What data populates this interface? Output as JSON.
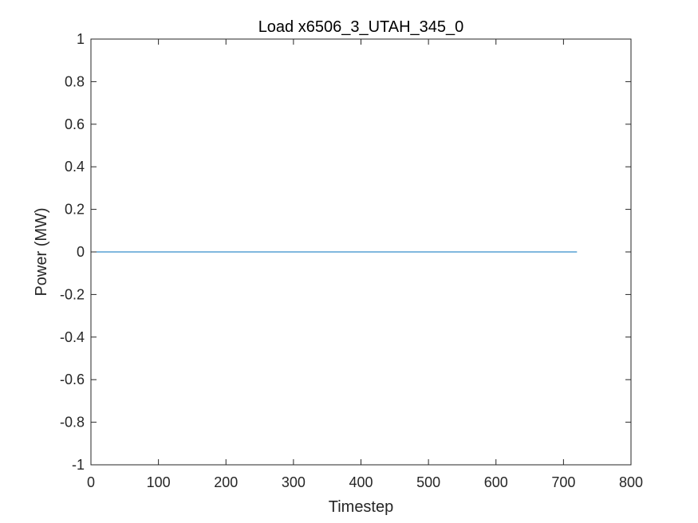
{
  "chart_data": {
    "type": "line",
    "title": "Load x6506_3_UTAH_345_0",
    "xlabel": "Timestep",
    "ylabel": "Power (MW)",
    "xlim": [
      0,
      800
    ],
    "ylim": [
      -1,
      1
    ],
    "xticks": [
      0,
      100,
      200,
      300,
      400,
      500,
      600,
      700,
      800
    ],
    "xtick_labels": [
      "0",
      "100",
      "200",
      "300",
      "400",
      "500",
      "600",
      "700",
      "800"
    ],
    "yticks": [
      -1,
      -0.8,
      -0.6,
      -0.4,
      -0.2,
      0,
      0.2,
      0.4,
      0.6,
      0.8,
      1
    ],
    "ytick_labels": [
      "-1",
      "-0.8",
      "-0.6",
      "-0.4",
      "-0.2",
      "0",
      "0.2",
      "0.4",
      "0.6",
      "0.8",
      "1"
    ],
    "grid": false,
    "legend": "none",
    "series": [
      {
        "color": "#0072BD",
        "x": [
          1,
          720
        ],
        "y": [
          0,
          0
        ]
      }
    ]
  },
  "colors": {
    "axis": "#262626",
    "background": "#ffffff"
  }
}
